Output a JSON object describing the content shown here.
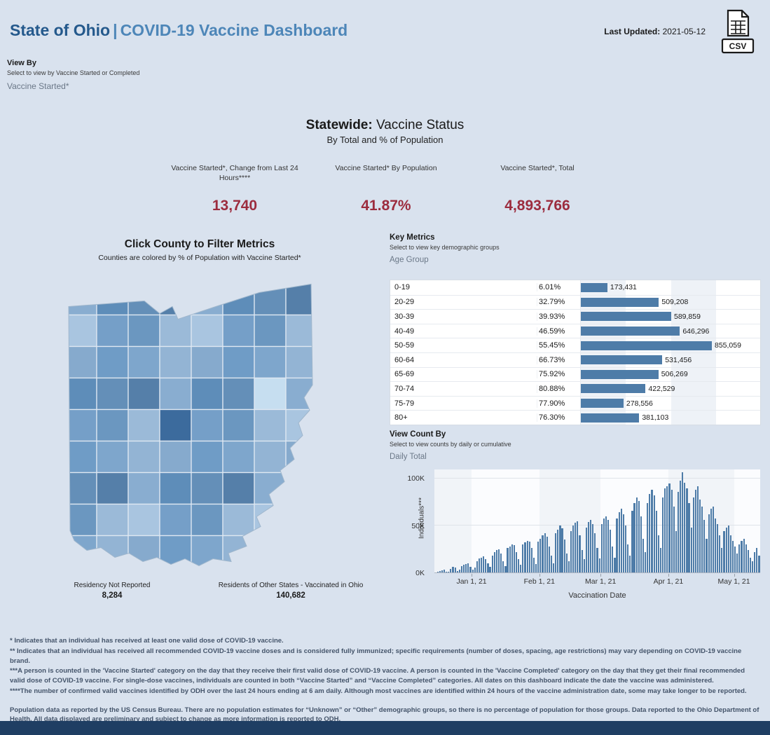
{
  "colors": {
    "background": "#d9e2ee",
    "title_primary_blue": "#24598c",
    "title_secondary_blue": "#4d86b8",
    "metric_red": "#9c2c3e",
    "bar_blue": "#4e7ca8",
    "footer_navy": "#1f3e63"
  },
  "header": {
    "title_primary": "State of Ohio",
    "title_separator": "|",
    "title_secondary": "COVID-19 Vaccine Dashboard",
    "last_updated_label": "Last Updated:",
    "last_updated_value": "2021-05-12",
    "csv_label": "CSV"
  },
  "view_by": {
    "label": "View By",
    "hint": "Select to view by Vaccine Started or Completed",
    "selected": "Vaccine Started*"
  },
  "statewide": {
    "title_bold": "Statewide:",
    "title_rest": " Vaccine Status",
    "subtitle": "By Total and % of Population",
    "metrics": [
      {
        "label": "Vaccine Started*, Change from Last 24 Hours****",
        "value": "13,740"
      },
      {
        "label": "Vaccine Started* By Population",
        "value": "41.87%"
      },
      {
        "label": "Vaccine Started*, Total",
        "value": "4,893,766"
      }
    ]
  },
  "map_panel": {
    "title": "Click County to Filter Metrics",
    "subtitle": "Counties are colored by % of Population with Vaccine Started*",
    "residency": {
      "label": "Residency Not Reported",
      "value": "8,284"
    },
    "other_states": {
      "label": "Residents of Other States - Vaccinated in Ohio",
      "value": "140,682"
    },
    "palette": [
      "#89add0",
      "#6f9cc6",
      "#9bbad8",
      "#5e8db9",
      "#7ea6cc",
      "#a9c5e0",
      "#648fb8",
      "#93b4d4",
      "#759fc8",
      "#557fa9",
      "#86aacd",
      "#6b97c0"
    ],
    "light_county": "#c6def0",
    "dark_county": "#3c6b9d"
  },
  "key_metrics": {
    "label": "Key Metrics",
    "hint": "Select to view key demographic groups",
    "selected": "Age Group"
  },
  "view_count_by": {
    "label": "View Count By",
    "hint": "Select to view counts by daily or cumulative",
    "selected": "Daily Total"
  },
  "chart_data": [
    {
      "id": "vaccine-started-by-age-group",
      "type": "bar",
      "orientation": "horizontal",
      "categories": [
        "0-19",
        "20-29",
        "30-39",
        "40-49",
        "50-59",
        "60-64",
        "65-69",
        "70-74",
        "75-79",
        "80+"
      ],
      "series": [
        {
          "name": "% of Population",
          "values": [
            6.01,
            32.79,
            39.93,
            46.59,
            55.45,
            66.73,
            75.92,
            80.88,
            77.9,
            76.3
          ]
        },
        {
          "name": "Individuals",
          "values": [
            173431,
            509208,
            589859,
            646296,
            855059,
            531456,
            506269,
            422529,
            278556,
            381103
          ]
        }
      ]
    },
    {
      "id": "daily-vaccinations",
      "type": "bar",
      "title": "Daily Total",
      "xlabel": "Vaccination Date",
      "ylabel": "Individuals***",
      "ymax": 110000,
      "yticks": [
        {
          "label": "0K",
          "value": 0
        },
        {
          "label": "50K",
          "value": 50000
        },
        {
          "label": "100K",
          "value": 100000
        }
      ],
      "xticks": [
        {
          "label": "Jan 1, 21",
          "i": 17
        },
        {
          "label": "Feb 1, 21",
          "i": 48
        },
        {
          "label": "Mar 1, 21",
          "i": 76
        },
        {
          "label": "Apr 1, 21",
          "i": 107
        },
        {
          "label": "May 1, 21",
          "i": 137
        }
      ],
      "values": [
        300,
        800,
        1500,
        2500,
        3000,
        1000,
        800,
        4000,
        6000,
        5000,
        1500,
        3000,
        7000,
        8000,
        9000,
        10000,
        6000,
        3000,
        5000,
        12000,
        15000,
        16000,
        17000,
        14000,
        10000,
        6000,
        18000,
        22000,
        24000,
        25000,
        20000,
        12000,
        7000,
        26000,
        28000,
        30000,
        29000,
        22000,
        14000,
        8000,
        30000,
        32000,
        34000,
        33000,
        26000,
        16000,
        9000,
        33000,
        36000,
        40000,
        42000,
        38000,
        28000,
        18000,
        10000,
        42000,
        46000,
        50000,
        47000,
        35000,
        20000,
        12000,
        44000,
        50000,
        53000,
        55000,
        40000,
        24000,
        14000,
        48000,
        54000,
        56000,
        52000,
        42000,
        26000,
        15000,
        52000,
        58000,
        60000,
        56000,
        46000,
        28000,
        16000,
        58000,
        64000,
        68000,
        62000,
        50000,
        30000,
        18000,
        66000,
        74000,
        80000,
        76000,
        60000,
        36000,
        22000,
        74000,
        84000,
        88000,
        82000,
        66000,
        40000,
        26000,
        80000,
        90000,
        92000,
        95000,
        88000,
        70000,
        44000,
        86000,
        98000,
        107000,
        96000,
        90000,
        74000,
        48000,
        80000,
        88000,
        92000,
        78000,
        70000,
        56000,
        36000,
        62000,
        68000,
        70000,
        58000,
        52000,
        40000,
        26000,
        44000,
        48000,
        50000,
        40000,
        34000,
        28000,
        20000,
        30000,
        34000,
        36000,
        30000,
        24000,
        16000,
        12000,
        22000,
        26000,
        18000
      ]
    }
  ],
  "footnotes": [
    "* Indicates that an individual has received at least one valid dose of COVID-19 vaccine.",
    "** Indicates that an individual has received all recommended COVID-19 vaccine doses and is considered fully immunized; specific requirements (number of doses, spacing, age restrictions) may vary depending on COVID-19 vaccine brand.",
    "***A person is counted in the 'Vaccine Started' category on the day that they receive their first valid dose of COVID-19 vaccine.  A person is counted in the 'Vaccine Completed' category on the day that they get their final recommended valid dose of COVID-19 vaccine. For single-dose vaccines, individuals are counted in both “Vaccine Started” and “Vaccine Completed” categories. All dates on this dashboard indicate the date the vaccine was administered.",
    "****The number of confirmed valid vaccines identified by ODH over the last 24 hours ending at 6 am daily. Although most vaccines are identified within 24 hours of the vaccine administration date, some may take longer to be reported."
  ],
  "population_note": "Population data as reported by the US Census Bureau. There are no population estimates for “Unknown” or “Other” demographic groups, so there is no percentage of population for those groups.  Data reported to the Ohio Department of Health.  All data displayed are preliminary and subject to change as more information is reported to ODH."
}
